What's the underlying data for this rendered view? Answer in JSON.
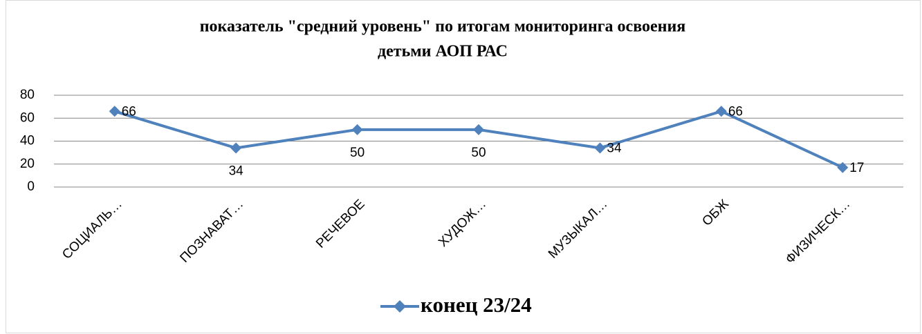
{
  "chart_data": {
    "type": "line",
    "title": [
      "показатель \"средний уровень\" по итогам мониторинга освоения",
      "детьми АОП РАС"
    ],
    "categories": [
      "СОЦИАЛЬ…",
      "ПОЗНАВАТ…",
      "РЕЧЕВОЕ",
      "ХУДОЖ…",
      "МУЗЫКАЛ…",
      "ОБЖ",
      "ФИЗИЧЕСК…"
    ],
    "series": [
      {
        "name": "конец 23/24",
        "color": "#4f81bd",
        "values": [
          66,
          34,
          50,
          50,
          34,
          66,
          17
        ]
      }
    ],
    "ylim": [
      0,
      80
    ],
    "yticks": [
      0,
      20,
      40,
      60,
      80
    ],
    "grid": true,
    "legend": "bottom"
  }
}
